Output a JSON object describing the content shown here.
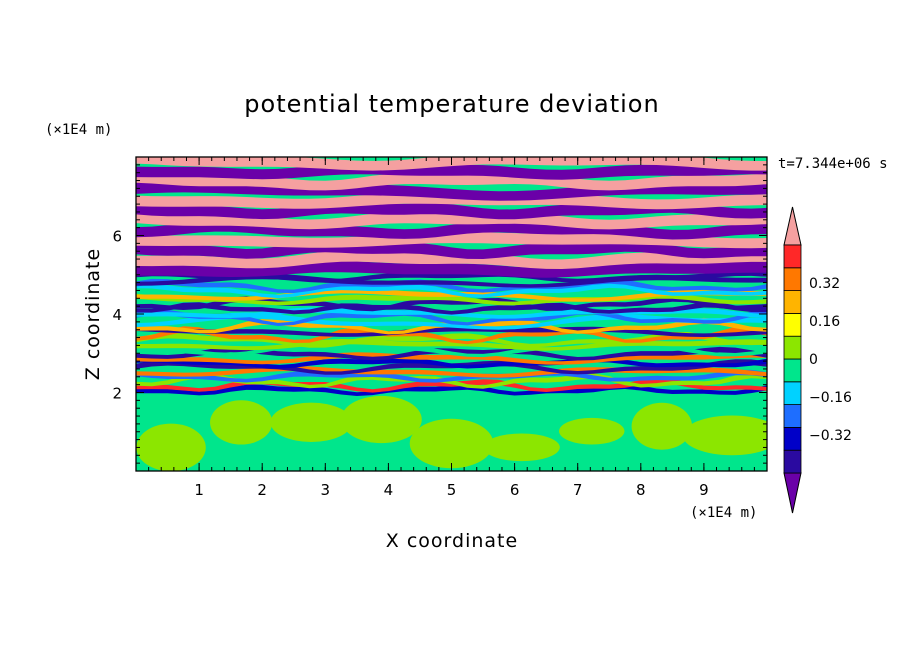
{
  "chart_data": {
    "type": "heatmap",
    "title": "potential temperature deviation",
    "xlabel": "X coordinate",
    "ylabel": "Z coordinate",
    "x_unit": "(×1E4 m)",
    "y_unit": "(×1E4 m)",
    "time_label": "t=7.344e+06 s",
    "xlim": [
      0,
      10
    ],
    "ylim": [
      0,
      8
    ],
    "x_ticks": [
      "1",
      "2",
      "3",
      "4",
      "5",
      "6",
      "7",
      "8",
      "9"
    ],
    "y_ticks": [
      "2",
      "4",
      "6"
    ],
    "colorbar": {
      "tick_labels": [
        "0.32",
        "0.16",
        "0",
        "−0.16",
        "−0.32"
      ],
      "tick_values": [
        0.32,
        0.16,
        0,
        -0.16,
        -0.32
      ],
      "range": [
        -0.48,
        0.48
      ],
      "extend": "both",
      "colors": [
        "#6a00a8",
        "#2a0aa0",
        "#0000c8",
        "#1e6eff",
        "#00d2ff",
        "#00e68c",
        "#8ce600",
        "#ffff00",
        "#ffb400",
        "#ff7800",
        "#ff2828",
        "#f5a0a0"
      ]
    },
    "fields": {
      "lower_layer": {
        "z_range": [
          0,
          2
        ],
        "value_range": [
          -0.08,
          0.08
        ],
        "colors": [
          "#00e68c",
          "#8ce600"
        ]
      },
      "mixed_layer": {
        "z_range": [
          2,
          5
        ],
        "value_range": [
          -0.48,
          0.48
        ]
      },
      "upper_layer": {
        "z_range": [
          5,
          8
        ],
        "values": [
          -0.48,
          0.48
        ],
        "colors": [
          "#6a00a8",
          "#f5a0a0"
        ]
      }
    }
  }
}
